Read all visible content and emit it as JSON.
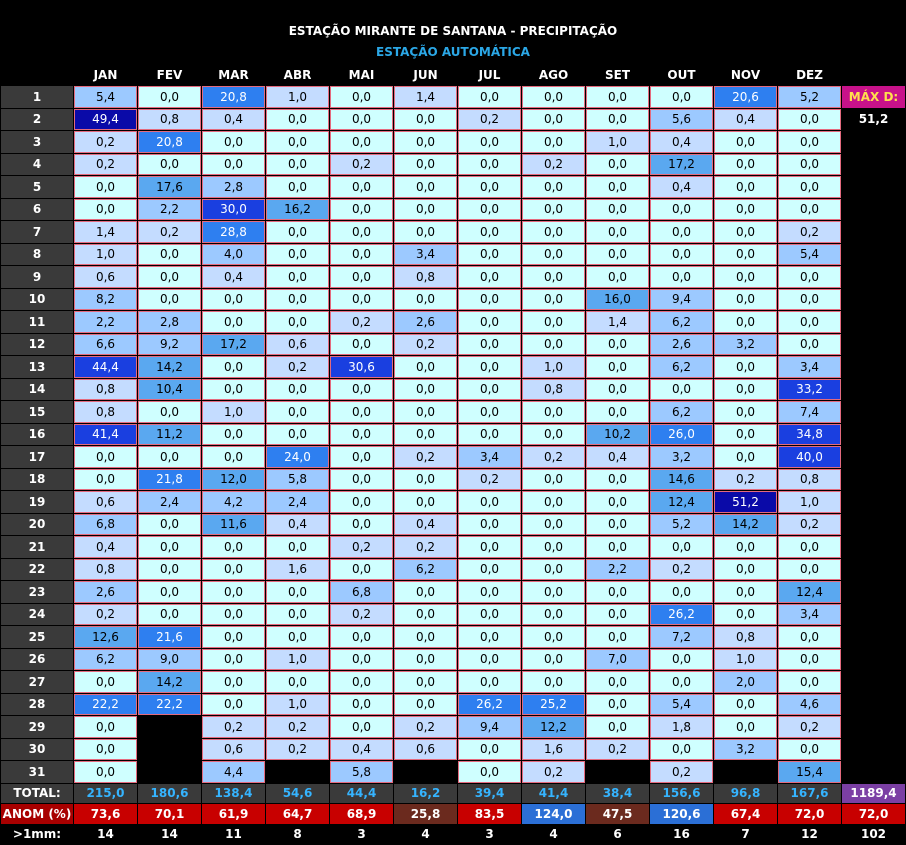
{
  "title": "ESTAÇÃO MIRANTE DE SANTANA - PRECIPITAÇÃO",
  "subtitle": "ESTAÇÃO AUTOMÁTICA",
  "months": [
    "JAN",
    "FEV",
    "MAR",
    "ABR",
    "MAI",
    "JUN",
    "JUL",
    "AGO",
    "SET",
    "OUT",
    "NOV",
    "DEZ"
  ],
  "max_label": "MÁX D:",
  "max_value": "51,2",
  "rows": [
    {
      "day": "1",
      "values": [
        "5,4",
        "0,0",
        "20,8",
        "1,0",
        "0,0",
        "1,4",
        "0,0",
        "0,0",
        "0,0",
        "0,0",
        "20,6",
        "5,2"
      ]
    },
    {
      "day": "2",
      "values": [
        "49,4",
        "0,8",
        "0,4",
        "0,0",
        "0,0",
        "0,0",
        "0,2",
        "0,0",
        "0,0",
        "5,6",
        "0,4",
        "0,0"
      ]
    },
    {
      "day": "3",
      "values": [
        "0,2",
        "20,8",
        "0,0",
        "0,0",
        "0,0",
        "0,0",
        "0,0",
        "0,0",
        "1,0",
        "0,4",
        "0,0",
        "0,0"
      ]
    },
    {
      "day": "4",
      "values": [
        "0,2",
        "0,0",
        "0,0",
        "0,0",
        "0,2",
        "0,0",
        "0,0",
        "0,2",
        "0,0",
        "17,2",
        "0,0",
        "0,0"
      ]
    },
    {
      "day": "5",
      "values": [
        "0,0",
        "17,6",
        "2,8",
        "0,0",
        "0,0",
        "0,0",
        "0,0",
        "0,0",
        "0,0",
        "0,4",
        "0,0",
        "0,0"
      ]
    },
    {
      "day": "6",
      "values": [
        "0,0",
        "2,2",
        "30,0",
        "16,2",
        "0,0",
        "0,0",
        "0,0",
        "0,0",
        "0,0",
        "0,0",
        "0,0",
        "0,0"
      ]
    },
    {
      "day": "7",
      "values": [
        "1,4",
        "0,2",
        "28,8",
        "0,0",
        "0,0",
        "0,0",
        "0,0",
        "0,0",
        "0,0",
        "0,0",
        "0,0",
        "0,2"
      ]
    },
    {
      "day": "8",
      "values": [
        "1,0",
        "0,0",
        "4,0",
        "0,0",
        "0,0",
        "3,4",
        "0,0",
        "0,0",
        "0,0",
        "0,0",
        "0,0",
        "5,4"
      ]
    },
    {
      "day": "9",
      "values": [
        "0,6",
        "0,0",
        "0,4",
        "0,0",
        "0,0",
        "0,8",
        "0,0",
        "0,0",
        "0,0",
        "0,0",
        "0,0",
        "0,0"
      ]
    },
    {
      "day": "10",
      "values": [
        "8,2",
        "0,0",
        "0,0",
        "0,0",
        "0,0",
        "0,0",
        "0,0",
        "0,0",
        "16,0",
        "9,4",
        "0,0",
        "0,0"
      ]
    },
    {
      "day": "11",
      "values": [
        "2,2",
        "2,8",
        "0,0",
        "0,0",
        "0,2",
        "2,6",
        "0,0",
        "0,0",
        "1,4",
        "6,2",
        "0,0",
        "0,0"
      ]
    },
    {
      "day": "12",
      "values": [
        "6,6",
        "9,2",
        "17,2",
        "0,6",
        "0,0",
        "0,2",
        "0,0",
        "0,0",
        "0,0",
        "2,6",
        "3,2",
        "0,0"
      ]
    },
    {
      "day": "13",
      "values": [
        "44,4",
        "14,2",
        "0,0",
        "0,2",
        "30,6",
        "0,0",
        "0,0",
        "1,0",
        "0,0",
        "6,2",
        "0,0",
        "3,4"
      ]
    },
    {
      "day": "14",
      "values": [
        "0,8",
        "10,4",
        "0,0",
        "0,0",
        "0,0",
        "0,0",
        "0,0",
        "0,8",
        "0,0",
        "0,0",
        "0,0",
        "33,2"
      ]
    },
    {
      "day": "15",
      "values": [
        "0,8",
        "0,0",
        "1,0",
        "0,0",
        "0,0",
        "0,0",
        "0,0",
        "0,0",
        "0,0",
        "6,2",
        "0,0",
        "7,4"
      ]
    },
    {
      "day": "16",
      "values": [
        "41,4",
        "11,2",
        "0,0",
        "0,0",
        "0,0",
        "0,0",
        "0,0",
        "0,0",
        "10,2",
        "26,0",
        "0,0",
        "34,8"
      ]
    },
    {
      "day": "17",
      "values": [
        "0,0",
        "0,0",
        "0,0",
        "24,0",
        "0,0",
        "0,2",
        "3,4",
        "0,2",
        "0,4",
        "3,2",
        "0,0",
        "40,0"
      ]
    },
    {
      "day": "18",
      "values": [
        "0,0",
        "21,8",
        "12,0",
        "5,8",
        "0,0",
        "0,0",
        "0,2",
        "0,0",
        "0,0",
        "14,6",
        "0,2",
        "0,8"
      ]
    },
    {
      "day": "19",
      "values": [
        "0,6",
        "2,4",
        "4,2",
        "2,4",
        "0,0",
        "0,0",
        "0,0",
        "0,0",
        "0,0",
        "12,4",
        "51,2",
        "1,0"
      ]
    },
    {
      "day": "20",
      "values": [
        "6,8",
        "0,0",
        "11,6",
        "0,4",
        "0,0",
        "0,4",
        "0,0",
        "0,0",
        "0,0",
        "5,2",
        "14,2",
        "0,2"
      ]
    },
    {
      "day": "21",
      "values": [
        "0,4",
        "0,0",
        "0,0",
        "0,0",
        "0,2",
        "0,2",
        "0,0",
        "0,0",
        "0,0",
        "0,0",
        "0,0",
        "0,0"
      ]
    },
    {
      "day": "22",
      "values": [
        "0,8",
        "0,0",
        "0,0",
        "1,6",
        "0,0",
        "6,2",
        "0,0",
        "0,0",
        "2,2",
        "0,2",
        "0,0",
        "0,0"
      ]
    },
    {
      "day": "23",
      "values": [
        "2,6",
        "0,0",
        "0,0",
        "0,0",
        "6,8",
        "0,0",
        "0,0",
        "0,0",
        "0,0",
        "0,0",
        "0,0",
        "12,4"
      ]
    },
    {
      "day": "24",
      "values": [
        "0,2",
        "0,0",
        "0,0",
        "0,0",
        "0,2",
        "0,0",
        "0,0",
        "0,0",
        "0,0",
        "26,2",
        "0,0",
        "3,4"
      ]
    },
    {
      "day": "25",
      "values": [
        "12,6",
        "21,6",
        "0,0",
        "0,0",
        "0,0",
        "0,0",
        "0,0",
        "0,0",
        "0,0",
        "7,2",
        "0,8",
        "0,0"
      ]
    },
    {
      "day": "26",
      "values": [
        "6,2",
        "9,0",
        "0,0",
        "1,0",
        "0,0",
        "0,0",
        "0,0",
        "0,0",
        "7,0",
        "0,0",
        "1,0",
        "0,0"
      ]
    },
    {
      "day": "27",
      "values": [
        "0,0",
        "14,2",
        "0,0",
        "0,0",
        "0,0",
        "0,0",
        "0,0",
        "0,0",
        "0,0",
        "0,0",
        "2,0",
        "0,0"
      ]
    },
    {
      "day": "28",
      "values": [
        "22,2",
        "22,2",
        "0,0",
        "1,0",
        "0,0",
        "0,0",
        "26,2",
        "25,2",
        "0,0",
        "5,4",
        "0,0",
        "4,6"
      ]
    },
    {
      "day": "29",
      "values": [
        "0,0",
        "",
        "0,2",
        "0,2",
        "0,0",
        "0,2",
        "9,4",
        "12,2",
        "0,0",
        "1,8",
        "0,0",
        "0,2"
      ]
    },
    {
      "day": "30",
      "values": [
        "0,0",
        "",
        "0,6",
        "0,2",
        "0,4",
        "0,6",
        "0,0",
        "1,6",
        "0,2",
        "0,0",
        "3,2",
        "0,0"
      ]
    },
    {
      "day": "31",
      "values": [
        "0,0",
        "",
        "4,4",
        "",
        "5,8",
        "",
        "0,0",
        "0,2",
        "",
        "0,2",
        "",
        "15,4"
      ]
    }
  ],
  "total": {
    "label": "TOTAL:",
    "values": [
      "215,0",
      "180,6",
      "138,4",
      "54,6",
      "44,4",
      "16,2",
      "39,4",
      "41,4",
      "38,4",
      "156,6",
      "96,8",
      "167,6"
    ],
    "grand": "1189,4"
  },
  "anom": {
    "label": "ANOM (%)",
    "values": [
      "73,6",
      "70,1",
      "61,9",
      "64,7",
      "68,9",
      "25,8",
      "83,5",
      "124,0",
      "47,5",
      "120,6",
      "67,4",
      "72,0"
    ],
    "grand": "72,0",
    "colors": [
      "#c80000",
      "#c80000",
      "#c80000",
      "#c80000",
      "#c80000",
      "#6b2a1e",
      "#c80000",
      "#2b6fd6",
      "#6b2a1e",
      "#2b6fd6",
      "#c80000",
      "#c80000"
    ],
    "grand_color": "#c80000"
  },
  "count": {
    "label": ">1mm:",
    "values": [
      "14",
      "14",
      "11",
      "8",
      "3",
      "4",
      "3",
      "4",
      "6",
      "16",
      "7",
      "12"
    ],
    "grand": "102"
  },
  "colors": {
    "zero": "#cfffff",
    "low": "#c4dcff",
    "mid": "#9cc9ff",
    "midhigh": "#5aa8f0",
    "high": "#2e7ff0",
    "vhigh": "#1a3fe0",
    "max": "#0a0aa8",
    "anom_red": "#c80000",
    "anom_brown": "#6b2a1e",
    "anom_blue": "#2b6fd6",
    "total_grand": "#7b3fa4"
  }
}
